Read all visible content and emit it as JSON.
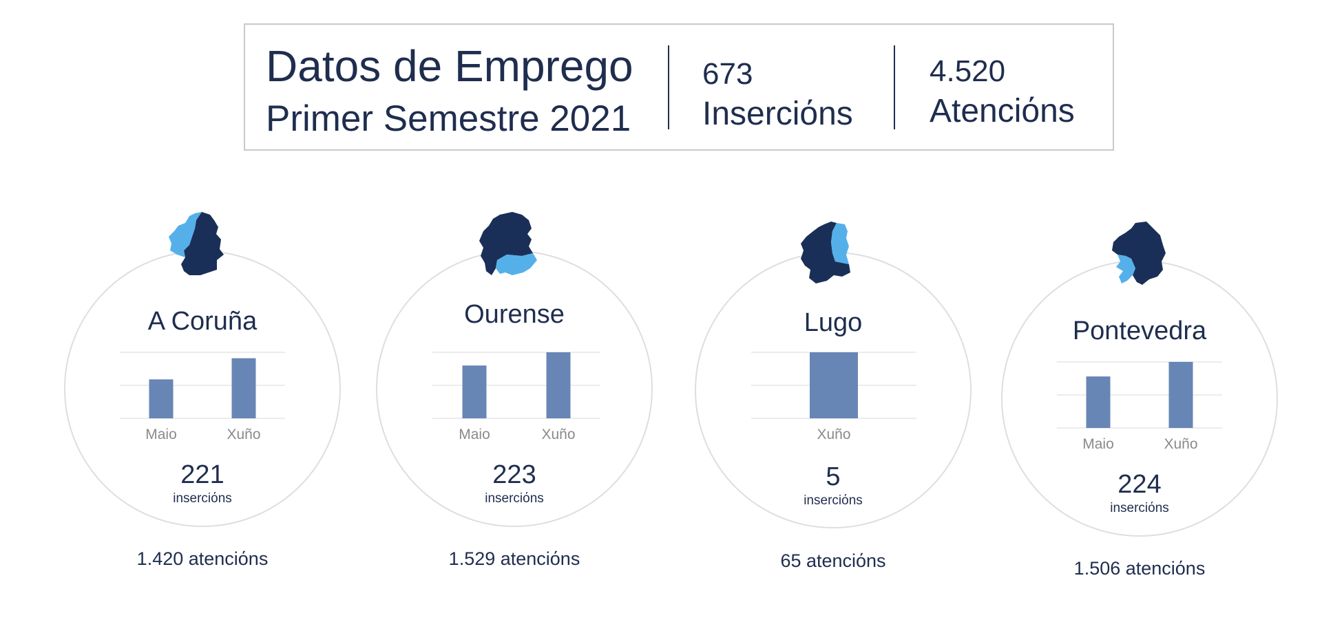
{
  "header": {
    "title": "Datos de Emprego",
    "subtitle": "Primer Semestre 2021",
    "stats": [
      {
        "value": "673",
        "label": "Inserciόns"
      },
      {
        "value": "4.520",
        "label": "Atenciόns"
      }
    ]
  },
  "colors": {
    "text": "#1f2d4e",
    "bar": "#6886b5",
    "map_dark": "#1a2f58",
    "map_highlight": "#55b0ea",
    "circle_border": "#dedede",
    "gridline": "#e6e6e6",
    "tick_text": "#8a8a8a"
  },
  "chart_data": [
    {
      "type": "bar",
      "title": "A Coruña",
      "categories": [
        "Maio",
        "Xuño"
      ],
      "values": [
        59,
        91
      ],
      "ylim": [
        0,
        100
      ],
      "grid": true,
      "total": "221",
      "unit": "inserciόns",
      "attentions": "1.420 atenciόns",
      "map_icon": "galicia-map-a-coruna-highlighted-icon"
    },
    {
      "type": "bar",
      "title": "Ourense",
      "categories": [
        "Maio",
        "Xuño"
      ],
      "values": [
        80,
        100
      ],
      "ylim": [
        0,
        100
      ],
      "grid": true,
      "total": "223",
      "unit": "inserciόns",
      "attentions": "1.529 atenciόns",
      "map_icon": "galicia-map-ourense-highlighted-icon"
    },
    {
      "type": "bar",
      "title": "Lugo",
      "categories": [
        "Xuño"
      ],
      "values": [
        5
      ],
      "ylim": [
        0,
        5
      ],
      "grid": true,
      "total": "5",
      "unit": "inserciόns",
      "attentions": "65 atenciόns",
      "map_icon": "galicia-map-lugo-highlighted-icon"
    },
    {
      "type": "bar",
      "title": "Pontevedra",
      "categories": [
        "Maio",
        "Xuño"
      ],
      "values": [
        78,
        100
      ],
      "ylim": [
        0,
        100
      ],
      "grid": true,
      "total": "224",
      "unit": "inserciόns",
      "attentions": "1.506 atenciόns",
      "map_icon": "galicia-map-pontevedra-highlighted-icon"
    }
  ]
}
